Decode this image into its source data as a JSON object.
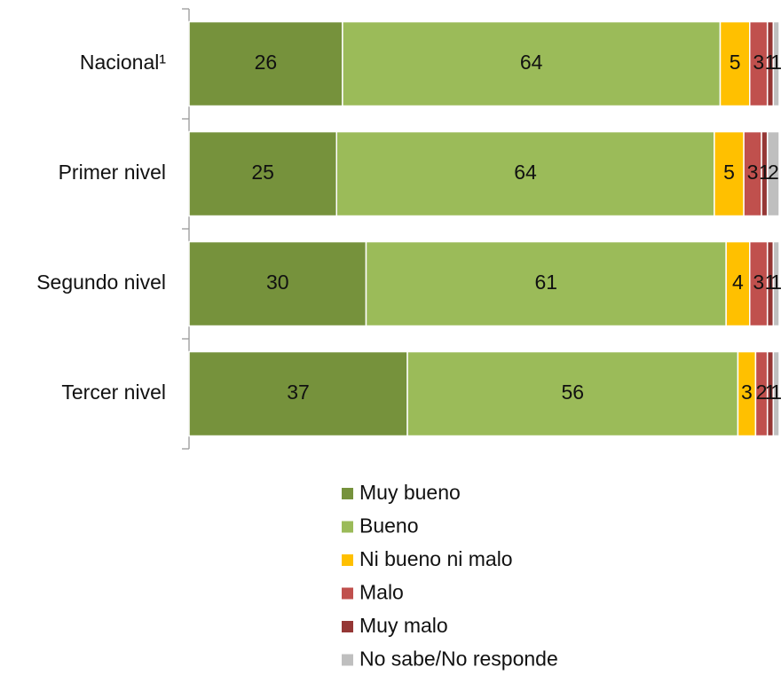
{
  "chart_data": {
    "type": "stacked-bar-horizontal",
    "categories": [
      "Nacional¹",
      "Primer nivel",
      "Segundo nivel",
      "Tercer nivel"
    ],
    "series": [
      {
        "name": "Muy bueno",
        "color": "#76923c",
        "values": [
          26,
          25,
          30,
          37
        ]
      },
      {
        "name": "Bueno",
        "color": "#9bbb59",
        "values": [
          64,
          64,
          61,
          56
        ]
      },
      {
        "name": "Ni bueno ni malo",
        "color": "#ffc000",
        "values": [
          5,
          5,
          4,
          3
        ]
      },
      {
        "name": "Malo",
        "color": "#c0504d",
        "values": [
          3,
          3,
          3,
          2
        ]
      },
      {
        "name": "Muy malo",
        "color": "#953735",
        "values": [
          1,
          1,
          1,
          1
        ]
      },
      {
        "name": "No sabe/No responde",
        "color": "#bfbfbf",
        "values": [
          1,
          2,
          1,
          1
        ]
      }
    ],
    "xlim": [
      0,
      100
    ],
    "legend": "bottom"
  }
}
